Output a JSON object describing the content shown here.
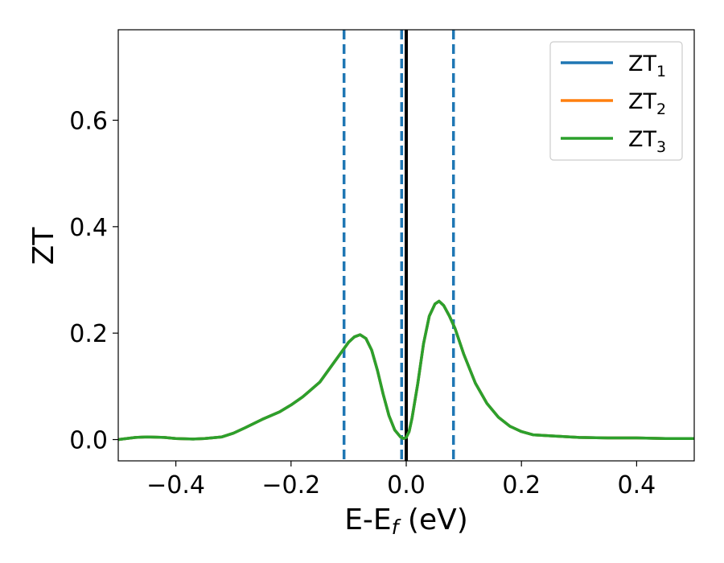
{
  "chart_data": {
    "type": "line",
    "xlabel": "E-E",
    "xlabel_sub": "f",
    "xlabel_unit": " (eV)",
    "ylabel": "ZT",
    "xlim": [
      -0.5,
      0.5
    ],
    "ylim": [
      -0.04,
      0.77
    ],
    "x_ticks": [
      -0.4,
      -0.2,
      0.0,
      0.2,
      0.4
    ],
    "x_tick_labels": [
      "−0.4",
      "−0.2",
      "0.0",
      "0.2",
      "0.4"
    ],
    "y_ticks": [
      0.0,
      0.2,
      0.4,
      0.6
    ],
    "y_tick_labels": [
      "0.0",
      "0.2",
      "0.4",
      "0.6"
    ],
    "grid": false,
    "legend_position": "top-right",
    "series": [
      {
        "name": "ZT",
        "sub": "1",
        "color": "#1f77b4",
        "x": [
          -0.5,
          -0.47,
          -0.45,
          -0.42,
          -0.4,
          -0.37,
          -0.35,
          -0.32,
          -0.3,
          -0.28,
          -0.25,
          -0.22,
          -0.2,
          -0.18,
          -0.15,
          -0.13,
          -0.11,
          -0.1,
          -0.09,
          -0.08,
          -0.07,
          -0.06,
          -0.05,
          -0.04,
          -0.03,
          -0.02,
          -0.01,
          -0.005,
          0.0,
          0.005,
          0.01,
          0.02,
          0.03,
          0.04,
          0.05,
          0.057,
          0.065,
          0.075,
          0.085,
          0.1,
          0.12,
          0.14,
          0.16,
          0.18,
          0.2,
          0.22,
          0.25,
          0.3,
          0.35,
          0.4,
          0.45,
          0.5
        ],
        "y": [
          0.0,
          0.004,
          0.005,
          0.004,
          0.002,
          0.001,
          0.002,
          0.005,
          0.012,
          0.022,
          0.038,
          0.052,
          0.065,
          0.08,
          0.108,
          0.138,
          0.168,
          0.183,
          0.193,
          0.197,
          0.19,
          0.168,
          0.13,
          0.085,
          0.045,
          0.018,
          0.005,
          0.002,
          0.004,
          0.015,
          0.04,
          0.105,
          0.18,
          0.232,
          0.255,
          0.26,
          0.252,
          0.232,
          0.208,
          0.16,
          0.106,
          0.068,
          0.042,
          0.025,
          0.015,
          0.009,
          0.007,
          0.004,
          0.003,
          0.003,
          0.002,
          0.002
        ]
      },
      {
        "name": "ZT",
        "sub": "2",
        "color": "#ff7f0e",
        "x": [
          -0.5,
          -0.47,
          -0.45,
          -0.42,
          -0.4,
          -0.37,
          -0.35,
          -0.32,
          -0.3,
          -0.28,
          -0.25,
          -0.22,
          -0.2,
          -0.18,
          -0.15,
          -0.13,
          -0.11,
          -0.1,
          -0.09,
          -0.08,
          -0.07,
          -0.06,
          -0.05,
          -0.04,
          -0.03,
          -0.02,
          -0.01,
          -0.005,
          0.0,
          0.005,
          0.01,
          0.02,
          0.03,
          0.04,
          0.05,
          0.057,
          0.065,
          0.075,
          0.085,
          0.1,
          0.12,
          0.14,
          0.16,
          0.18,
          0.2,
          0.22,
          0.25,
          0.3,
          0.35,
          0.4,
          0.45,
          0.5
        ],
        "y": [
          0.0,
          0.004,
          0.005,
          0.004,
          0.002,
          0.001,
          0.002,
          0.005,
          0.012,
          0.022,
          0.038,
          0.052,
          0.065,
          0.08,
          0.108,
          0.138,
          0.168,
          0.183,
          0.193,
          0.197,
          0.19,
          0.168,
          0.13,
          0.085,
          0.045,
          0.018,
          0.005,
          0.002,
          0.004,
          0.015,
          0.04,
          0.105,
          0.18,
          0.232,
          0.255,
          0.26,
          0.252,
          0.232,
          0.208,
          0.16,
          0.106,
          0.068,
          0.042,
          0.025,
          0.015,
          0.009,
          0.007,
          0.004,
          0.003,
          0.003,
          0.002,
          0.002
        ]
      },
      {
        "name": "ZT",
        "sub": "3",
        "color": "#2ca02c",
        "x": [
          -0.5,
          -0.47,
          -0.45,
          -0.42,
          -0.4,
          -0.37,
          -0.35,
          -0.32,
          -0.3,
          -0.28,
          -0.25,
          -0.22,
          -0.2,
          -0.18,
          -0.15,
          -0.13,
          -0.11,
          -0.1,
          -0.09,
          -0.08,
          -0.07,
          -0.06,
          -0.05,
          -0.04,
          -0.03,
          -0.02,
          -0.01,
          -0.005,
          0.0,
          0.005,
          0.01,
          0.02,
          0.03,
          0.04,
          0.05,
          0.057,
          0.065,
          0.075,
          0.085,
          0.1,
          0.12,
          0.14,
          0.16,
          0.18,
          0.2,
          0.22,
          0.25,
          0.3,
          0.35,
          0.4,
          0.45,
          0.5
        ],
        "y": [
          0.0,
          0.004,
          0.005,
          0.004,
          0.002,
          0.001,
          0.002,
          0.005,
          0.012,
          0.022,
          0.038,
          0.052,
          0.065,
          0.08,
          0.108,
          0.138,
          0.168,
          0.183,
          0.193,
          0.197,
          0.19,
          0.168,
          0.13,
          0.085,
          0.045,
          0.018,
          0.005,
          0.002,
          0.004,
          0.015,
          0.04,
          0.105,
          0.18,
          0.232,
          0.255,
          0.26,
          0.252,
          0.232,
          0.208,
          0.16,
          0.106,
          0.068,
          0.042,
          0.025,
          0.015,
          0.009,
          0.007,
          0.004,
          0.003,
          0.003,
          0.002,
          0.002
        ]
      }
    ],
    "reference_lines": [
      {
        "x": -0.108,
        "style": "dashed",
        "color": "#1f77b4"
      },
      {
        "x": -0.008,
        "style": "dashed",
        "color": "#1f77b4"
      },
      {
        "x": 0.082,
        "style": "dashed",
        "color": "#1f77b4"
      },
      {
        "x": 0.0,
        "style": "solid",
        "color": "#000000"
      }
    ]
  }
}
